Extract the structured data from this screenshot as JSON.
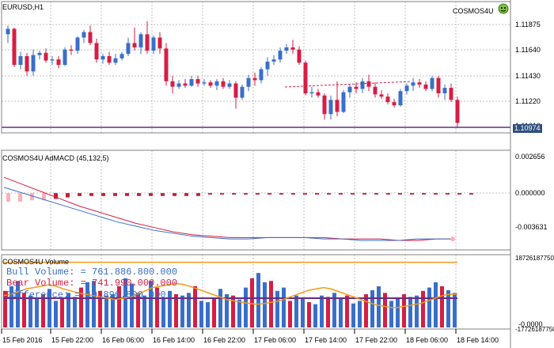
{
  "symbol_title": "EURUSD,H1",
  "expert_name": "COSMOS4U",
  "colors": {
    "bull": "#3a6fc9",
    "bear": "#d61e45",
    "grid": "#c0c0c0",
    "price_line": "#6a2a8a",
    "orange": "#f39a1a",
    "macd_pos": "#ffb0b8",
    "macd_neg": "#c41e3a",
    "badge": "#2f4f7f"
  },
  "price_axis": {
    "ticks": [
      "1.11875",
      "1.11640",
      "1.11430",
      "1.11220",
      "1.11010"
    ],
    "current": "1.10974"
  },
  "time_axis": [
    "15 Feb 2016",
    "15 Feb 22:00",
    "16 Feb 06:00",
    "16 Feb 14:00",
    "16 Feb 22:00",
    "17 Feb 06:00",
    "17 Feb 14:00",
    "17 Feb 22:00",
    "18 Feb 06:00",
    "18 Feb 14:00"
  ],
  "macd_panel": {
    "title": "COSMOS4U AdMACD (45,132,5)",
    "ticks": [
      "0.002656",
      "0.000000",
      "-0.003631"
    ]
  },
  "volume_panel": {
    "title": "COSMOS4U Volume",
    "ticks": [
      "18726187750",
      "-0.0000"
    ],
    "bottom_tick": "-17726187750",
    "bull_label": "Bull Volume: = 761.886.800.000",
    "bear_label": "Bear Volume: = 741.990.000.000",
    "diff_label": "Difference: = 19.896.800.000"
  },
  "chart_data": {
    "type": "candlestick",
    "price_ylim": [
      1.109,
      1.1205
    ],
    "candles": [
      [
        1.1178,
        1.1186,
        1.117,
        1.1183
      ],
      [
        1.1183,
        1.1184,
        1.1148,
        1.115
      ],
      [
        1.115,
        1.1162,
        1.1146,
        1.1158
      ],
      [
        1.1158,
        1.1161,
        1.114,
        1.1144
      ],
      [
        1.1144,
        1.1164,
        1.114,
        1.1159
      ],
      [
        1.1159,
        1.1163,
        1.1155,
        1.1161
      ],
      [
        1.1161,
        1.1165,
        1.1152,
        1.1154
      ],
      [
        1.1154,
        1.1158,
        1.115,
        1.1155
      ],
      [
        1.1155,
        1.1158,
        1.1147,
        1.115
      ],
      [
        1.115,
        1.1166,
        1.1149,
        1.1164
      ],
      [
        1.1164,
        1.1168,
        1.1159,
        1.1163
      ],
      [
        1.1163,
        1.1176,
        1.116,
        1.1175
      ],
      [
        1.1175,
        1.1182,
        1.117,
        1.118
      ],
      [
        1.118,
        1.1186,
        1.1168,
        1.117
      ],
      [
        1.117,
        1.1174,
        1.1152,
        1.1155
      ],
      [
        1.1155,
        1.116,
        1.1151,
        1.1158
      ],
      [
        1.1158,
        1.1162,
        1.115,
        1.1152
      ],
      [
        1.1152,
        1.116,
        1.115,
        1.1156
      ],
      [
        1.1156,
        1.1162,
        1.1154,
        1.116
      ],
      [
        1.116,
        1.1175,
        1.1158,
        1.117
      ],
      [
        1.117,
        1.1184,
        1.1163,
        1.1166
      ],
      [
        1.1166,
        1.118,
        1.116,
        1.1178
      ],
      [
        1.1178,
        1.119,
        1.116,
        1.1163
      ],
      [
        1.1163,
        1.1177,
        1.116,
        1.1175
      ],
      [
        1.1175,
        1.118,
        1.116,
        1.1165
      ],
      [
        1.1165,
        1.117,
        1.1131,
        1.1135
      ],
      [
        1.1135,
        1.114,
        1.1124,
        1.113
      ],
      [
        1.113,
        1.1136,
        1.1128,
        1.1133
      ],
      [
        1.1133,
        1.1137,
        1.1129,
        1.1131
      ],
      [
        1.1131,
        1.114,
        1.113,
        1.1137
      ],
      [
        1.1137,
        1.114,
        1.113,
        1.1133
      ],
      [
        1.1133,
        1.1137,
        1.1131,
        1.1134
      ],
      [
        1.1134,
        1.1136,
        1.1129,
        1.1131
      ],
      [
        1.1131,
        1.1137,
        1.1127,
        1.1135
      ],
      [
        1.1135,
        1.1138,
        1.1128,
        1.113
      ],
      [
        1.113,
        1.1136,
        1.1128,
        1.1133
      ],
      [
        1.1133,
        1.1135,
        1.111,
        1.112
      ],
      [
        1.112,
        1.1132,
        1.1118,
        1.113
      ],
      [
        1.113,
        1.1141,
        1.1126,
        1.1138
      ],
      [
        1.1138,
        1.1143,
        1.1131,
        1.1136
      ],
      [
        1.1136,
        1.1148,
        1.1133,
        1.1146
      ],
      [
        1.1146,
        1.1157,
        1.114,
        1.1153
      ],
      [
        1.1153,
        1.1159,
        1.115,
        1.1155
      ],
      [
        1.1155,
        1.1166,
        1.1152,
        1.1163
      ],
      [
        1.1163,
        1.1169,
        1.116,
        1.1166
      ],
      [
        1.1166,
        1.1173,
        1.116,
        1.1164
      ],
      [
        1.1164,
        1.1167,
        1.115,
        1.1152
      ],
      [
        1.1152,
        1.1154,
        1.1122,
        1.1124
      ],
      [
        1.1124,
        1.113,
        1.112,
        1.1125
      ],
      [
        1.1125,
        1.1128,
        1.112,
        1.1122
      ],
      [
        1.1122,
        1.1124,
        1.11,
        1.1105
      ],
      [
        1.1105,
        1.1122,
        1.11,
        1.1118
      ],
      [
        1.1118,
        1.1135,
        1.1103,
        1.1107
      ],
      [
        1.1107,
        1.1127,
        1.1106,
        1.1125
      ],
      [
        1.1125,
        1.1132,
        1.112,
        1.113
      ],
      [
        1.113,
        1.1134,
        1.1124,
        1.1128
      ],
      [
        1.1128,
        1.1138,
        1.1124,
        1.1135
      ],
      [
        1.1135,
        1.1141,
        1.1126,
        1.113
      ],
      [
        1.113,
        1.1134,
        1.112,
        1.1123
      ],
      [
        1.1123,
        1.1127,
        1.1119,
        1.1121
      ],
      [
        1.1121,
        1.1124,
        1.1114,
        1.1116
      ],
      [
        1.1116,
        1.1119,
        1.1111,
        1.1113
      ],
      [
        1.1113,
        1.1128,
        1.1112,
        1.1126
      ],
      [
        1.1126,
        1.1133,
        1.1123,
        1.1131
      ],
      [
        1.1131,
        1.1138,
        1.1126,
        1.1134
      ],
      [
        1.1134,
        1.1137,
        1.1129,
        1.1132
      ],
      [
        1.1132,
        1.1135,
        1.1126,
        1.1128
      ],
      [
        1.1128,
        1.114,
        1.1126,
        1.1138
      ],
      [
        1.1138,
        1.114,
        1.112,
        1.1124
      ],
      [
        1.1124,
        1.1132,
        1.1118,
        1.1129
      ],
      [
        1.1129,
        1.1133,
        1.1116,
        1.1118
      ],
      [
        1.1118,
        1.1121,
        1.1093,
        1.1097
      ]
    ],
    "macd_ylim": [
      -0.003631,
      0.002656
    ],
    "macd_hist": [
      -0.0006,
      -0.0006,
      -0.0005,
      -0.0005,
      -0.0004,
      -0.0003,
      -0.0002,
      -0.0002,
      -0.0002,
      -0.0002,
      -0.0002,
      -0.0002,
      -0.0002,
      -0.0002,
      -0.0002,
      -0.0002,
      -0.0002,
      -0.0001,
      -0.0001,
      -0.0001,
      -0.0001,
      -0.0001,
      -0.0001,
      -0.0001,
      -0.0001,
      -0.0001,
      -0.0001,
      -0.0001,
      -0.0001,
      -0.0001,
      -0.0001,
      -0.0001,
      -0.0001,
      -0.0001,
      -0.0001,
      -0.0001,
      -0.0001,
      -0.0001,
      -0.0001,
      -0.0001
    ],
    "macd_line": [
      0.0004,
      0.0,
      -0.0004,
      -0.0008,
      -0.0012,
      -0.0016,
      -0.002,
      -0.0023,
      -0.0026,
      -0.0028,
      -0.003,
      -0.0031,
      -0.0032,
      -0.0032,
      -0.0031,
      -0.0031,
      -0.0031,
      -0.0032,
      -0.0032,
      -0.0033,
      -0.0033,
      -0.0033,
      -0.0032,
      -0.0032,
      -0.0032
    ],
    "signal_line": [
      0.0011,
      0.0006,
      0.0001,
      -0.0004,
      -0.0009,
      -0.0013,
      -0.0017,
      -0.0021,
      -0.0024,
      -0.0027,
      -0.0029,
      -0.003,
      -0.0031,
      -0.0031,
      -0.0031,
      -0.0031,
      -0.0031,
      -0.0031,
      -0.0032,
      -0.0032,
      -0.0032,
      -0.0033,
      -0.0033,
      -0.0032,
      -0.0032
    ],
    "volume_ylim": [
      0,
      1.0
    ],
    "volume_bars": [
      0.55,
      0.62,
      0.7,
      0.52,
      0.48,
      0.45,
      0.5,
      0.58,
      0.4,
      0.44,
      0.52,
      0.46,
      0.6,
      0.68,
      0.7,
      0.55,
      0.48,
      0.5,
      0.62,
      0.74,
      0.66,
      0.52,
      0.48,
      0.7,
      0.6,
      0.45,
      0.55,
      0.5,
      0.48,
      0.52,
      0.62,
      0.4,
      0.38,
      0.44,
      0.58,
      0.5,
      0.48,
      0.42,
      0.6,
      0.74,
      0.82,
      0.68,
      0.7,
      0.55,
      0.6,
      0.4,
      0.48,
      0.44,
      0.38,
      0.35,
      0.48,
      0.46,
      0.52,
      0.44,
      0.48,
      0.36,
      0.4,
      0.5,
      0.56,
      0.62,
      0.52,
      0.4,
      0.44,
      0.5,
      0.46,
      0.48,
      0.55,
      0.6,
      0.68,
      0.62,
      0.56,
      0.52
    ],
    "volume_orange": [
      0.48,
      0.5,
      0.54,
      0.58,
      0.6,
      0.62,
      0.64,
      0.62,
      0.58,
      0.55,
      0.52,
      0.5,
      0.48,
      0.46,
      0.44,
      0.42,
      0.44,
      0.46,
      0.5,
      0.55,
      0.6,
      0.62,
      0.64,
      0.66,
      0.65,
      0.62,
      0.58,
      0.54,
      0.5,
      0.46,
      0.42,
      0.4,
      0.38,
      0.36,
      0.35,
      0.36,
      0.38,
      0.4,
      0.44,
      0.48,
      0.52,
      0.56,
      0.58,
      0.6,
      0.58,
      0.54,
      0.5,
      0.46,
      0.42,
      0.38,
      0.34,
      0.32,
      0.3,
      0.3,
      0.32,
      0.34,
      0.36,
      0.4,
      0.44,
      0.48,
      0.5,
      0.5
    ],
    "volume_purple_level": 0.44,
    "volume_top_level": 0.98
  }
}
